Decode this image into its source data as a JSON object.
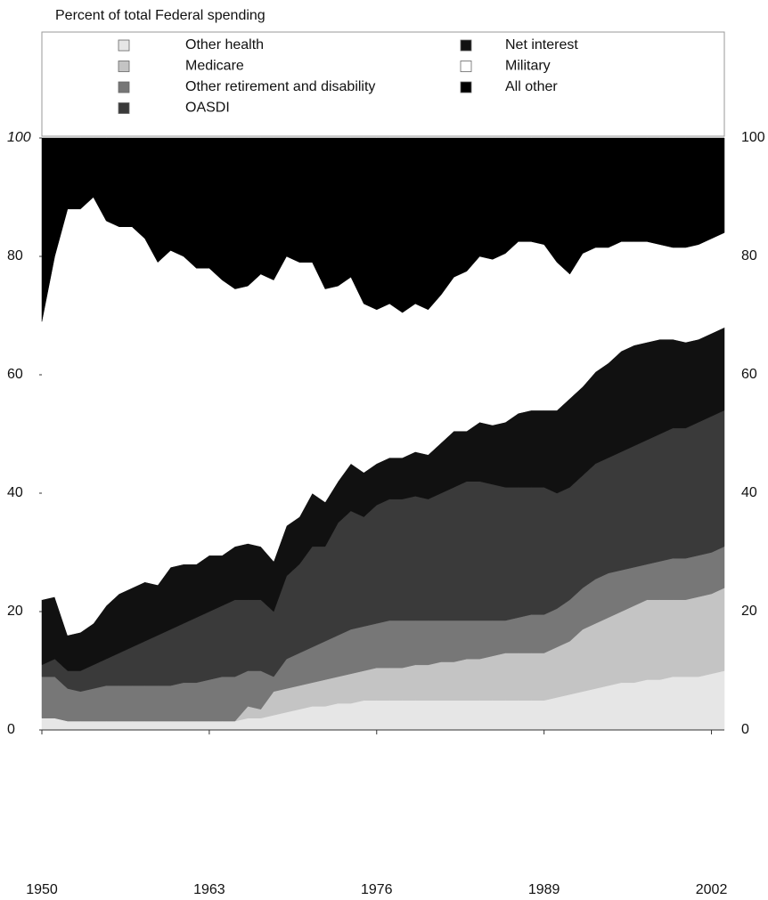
{
  "chart_data": {
    "type": "stacked_area",
    "title": "Percent of total Federal spending",
    "x": [
      1950,
      1951,
      1952,
      1953,
      1954,
      1955,
      1956,
      1957,
      1958,
      1959,
      1960,
      1961,
      1962,
      1963,
      1964,
      1965,
      1966,
      1967,
      1968,
      1969,
      1970,
      1971,
      1972,
      1973,
      1974,
      1975,
      1976,
      1977,
      1978,
      1979,
      1980,
      1981,
      1982,
      1983,
      1984,
      1985,
      1986,
      1987,
      1988,
      1989,
      1990,
      1991,
      1992,
      1993,
      1994,
      1995,
      1996,
      1997,
      1998,
      1999,
      2000,
      2001,
      2002,
      2003
    ],
    "xlim": [
      1950,
      2003
    ],
    "xticks": [
      1950,
      1963,
      1976,
      1989,
      2002
    ],
    "ylim": [
      0,
      100
    ],
    "yticks": [
      0,
      20,
      40,
      60,
      80,
      100
    ],
    "legend": "top",
    "series": [
      {
        "name": "Other health",
        "color": "#e6e6e6",
        "values": [
          2,
          2,
          1.5,
          1.5,
          1.5,
          1.5,
          1.5,
          1.5,
          1.5,
          1.5,
          1.5,
          1.5,
          1.5,
          1.5,
          1.5,
          1.5,
          2,
          2,
          2.5,
          3,
          3.5,
          4,
          4,
          4.5,
          4.5,
          5,
          5,
          5,
          5,
          5,
          5,
          5,
          5,
          5,
          5,
          5,
          5,
          5,
          5,
          5,
          5.5,
          6,
          6.5,
          7,
          7.5,
          8,
          8,
          8.5,
          8.5,
          9,
          9,
          9,
          9.5,
          10
        ]
      },
      {
        "name": "Medicare",
        "color": "#c4c4c4",
        "values": [
          0,
          0,
          0,
          0,
          0,
          0,
          0,
          0,
          0,
          0,
          0,
          0,
          0,
          0,
          0,
          0,
          2,
          1.5,
          4,
          4,
          4,
          4,
          4.5,
          4.5,
          5,
          5,
          5.5,
          5.5,
          5.5,
          6,
          6,
          6.5,
          6.5,
          7,
          7,
          7.5,
          8,
          8,
          8,
          8,
          8.5,
          9,
          10.5,
          11,
          11.5,
          12,
          13,
          13.5,
          13.5,
          13,
          13,
          13.5,
          13.5,
          14
        ]
      },
      {
        "name": "Other retirement and disability",
        "color": "#777777",
        "values": [
          7,
          7,
          5.5,
          5,
          5.5,
          6,
          6,
          6,
          6,
          6,
          6,
          6.5,
          6.5,
          7,
          7.5,
          7.5,
          6,
          6.5,
          2.5,
          5,
          5.5,
          6,
          6.5,
          7,
          7.5,
          7.5,
          7.5,
          8,
          8,
          7.5,
          7.5,
          7,
          7,
          6.5,
          6.5,
          6,
          5.5,
          6,
          6.5,
          6.5,
          6.5,
          7,
          7,
          7.5,
          7.5,
          7,
          6.5,
          6,
          6.5,
          7,
          7,
          7,
          7,
          7
        ]
      },
      {
        "name": "OASDI",
        "color": "#3a3a3a",
        "values": [
          2,
          3,
          3,
          3.5,
          4,
          4.5,
          5.5,
          6.5,
          7.5,
          8.5,
          9.5,
          10,
          11,
          11.5,
          12,
          13,
          12,
          12,
          11,
          14,
          15,
          17,
          16,
          19,
          20,
          18.5,
          20,
          20.5,
          20.5,
          21,
          20.5,
          21.5,
          22.5,
          23.5,
          23.5,
          23,
          22.5,
          22,
          21.5,
          21.5,
          19.5,
          19,
          19,
          19.5,
          19.5,
          20,
          20.5,
          21,
          21.5,
          22,
          22,
          22.5,
          23,
          23
        ]
      },
      {
        "name": "Net interest",
        "color": "#111111",
        "values": [
          11,
          10.5,
          6,
          6.5,
          7,
          9,
          10,
          10,
          10,
          8.5,
          10.5,
          10,
          9,
          9.5,
          8.5,
          9,
          9.5,
          9,
          8.5,
          8.5,
          8,
          9,
          7.5,
          7,
          8,
          7.5,
          7,
          7,
          7,
          7.5,
          7.5,
          8.5,
          9.5,
          8.5,
          10,
          10,
          11,
          12.5,
          13,
          13,
          14,
          15,
          15,
          15.5,
          16,
          17,
          17,
          16.5,
          16,
          15,
          14.5,
          14,
          14,
          14
        ]
      },
      {
        "name": "Military",
        "color": "#ffffff",
        "values": [
          47,
          57.5,
          72,
          71.5,
          72,
          65,
          62,
          61,
          58,
          54.5,
          53.5,
          52,
          50,
          48.5,
          46.5,
          43.5,
          43.5,
          46,
          47.5,
          45.5,
          43,
          39,
          36,
          33,
          31.5,
          28.5,
          26,
          26,
          24.5,
          25,
          24.5,
          25,
          26,
          27,
          28,
          28,
          28.5,
          29,
          28.5,
          28,
          25,
          21,
          22.5,
          21,
          19.5,
          18.5,
          17.5,
          17,
          16,
          15.5,
          16,
          16,
          16,
          16
        ]
      },
      {
        "name": "All other",
        "color": "#000000",
        "values": [
          31,
          20,
          12,
          12,
          10,
          14,
          15,
          15,
          17,
          21,
          19,
          20,
          22,
          22,
          24,
          25.5,
          25,
          23,
          24,
          20,
          21,
          21,
          25.5,
          25,
          23.5,
          28,
          29,
          28,
          29.5,
          28,
          29,
          26.5,
          23.5,
          22.5,
          20,
          20.5,
          19.5,
          17.5,
          17.5,
          18,
          21,
          23,
          19.5,
          18.5,
          18.5,
          17.5,
          17.5,
          17.5,
          18,
          18.5,
          18.5,
          18,
          17,
          16
        ]
      }
    ]
  }
}
